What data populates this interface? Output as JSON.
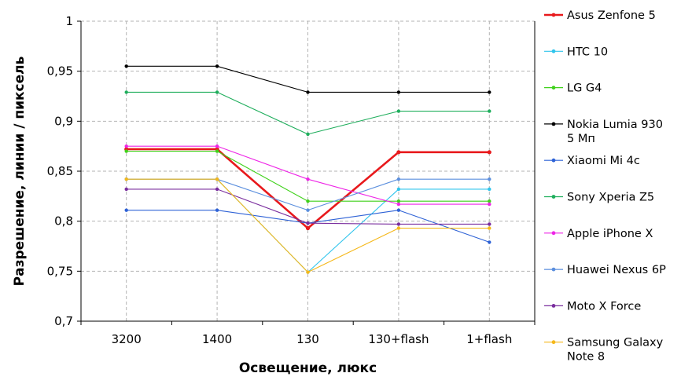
{
  "chart_data": {
    "type": "line",
    "xlabel": "Освещение, люкс",
    "ylabel": "Разрешение, линии / пиксель",
    "categories": [
      "3200",
      "1400",
      "130",
      "130+flash",
      "1+flash"
    ],
    "ylim": [
      0.7,
      1.0
    ],
    "yticks": [
      0.7,
      0.75,
      0.8,
      0.85,
      0.9,
      0.95,
      1.0
    ],
    "ytick_labels": [
      "0,7",
      "0,75",
      "0,8",
      "0,85",
      "0,9",
      "0,95",
      "1"
    ],
    "grid": true,
    "legend_position": "right",
    "series": [
      {
        "name": "Asus Zenfone 5",
        "color": "#e8191c",
        "thick": true,
        "values": [
          0.872,
          0.872,
          0.793,
          0.869,
          0.869
        ]
      },
      {
        "name": "HTC 10",
        "color": "#2fc4ec",
        "values": [
          0.842,
          0.842,
          0.749,
          0.832,
          0.832
        ]
      },
      {
        "name": "LG G4",
        "color": "#3fd11a",
        "values": [
          0.87,
          0.87,
          0.82,
          0.82,
          0.82
        ]
      },
      {
        "name": "Nokia Lumia 930\n5 Мп",
        "color": "#000000",
        "values": [
          0.955,
          0.955,
          0.929,
          0.929,
          0.929
        ]
      },
      {
        "name": "Xiaomi Mi 4c",
        "color": "#2e62d6",
        "values": [
          0.811,
          0.811,
          0.798,
          0.811,
          0.779
        ]
      },
      {
        "name": "Sony Xperia Z5",
        "color": "#1fae5c",
        "values": [
          0.929,
          0.929,
          0.887,
          0.91,
          0.91
        ]
      },
      {
        "name": "Apple iPhone X",
        "color": "#ee25e6",
        "values": [
          0.875,
          0.875,
          0.842,
          0.817,
          0.817
        ]
      },
      {
        "name": "Huawei Nexus 6P",
        "color": "#5b8fde",
        "values": [
          0.842,
          0.842,
          0.811,
          0.842,
          0.842
        ]
      },
      {
        "name": "Moto X Force",
        "color": "#7a2e9e",
        "values": [
          0.832,
          0.832,
          0.798,
          0.797,
          0.797
        ]
      },
      {
        "name": "Samsung Galaxy\nNote 8",
        "color": "#f5b81a",
        "values": [
          0.842,
          0.842,
          0.749,
          0.793,
          0.793
        ]
      }
    ]
  }
}
